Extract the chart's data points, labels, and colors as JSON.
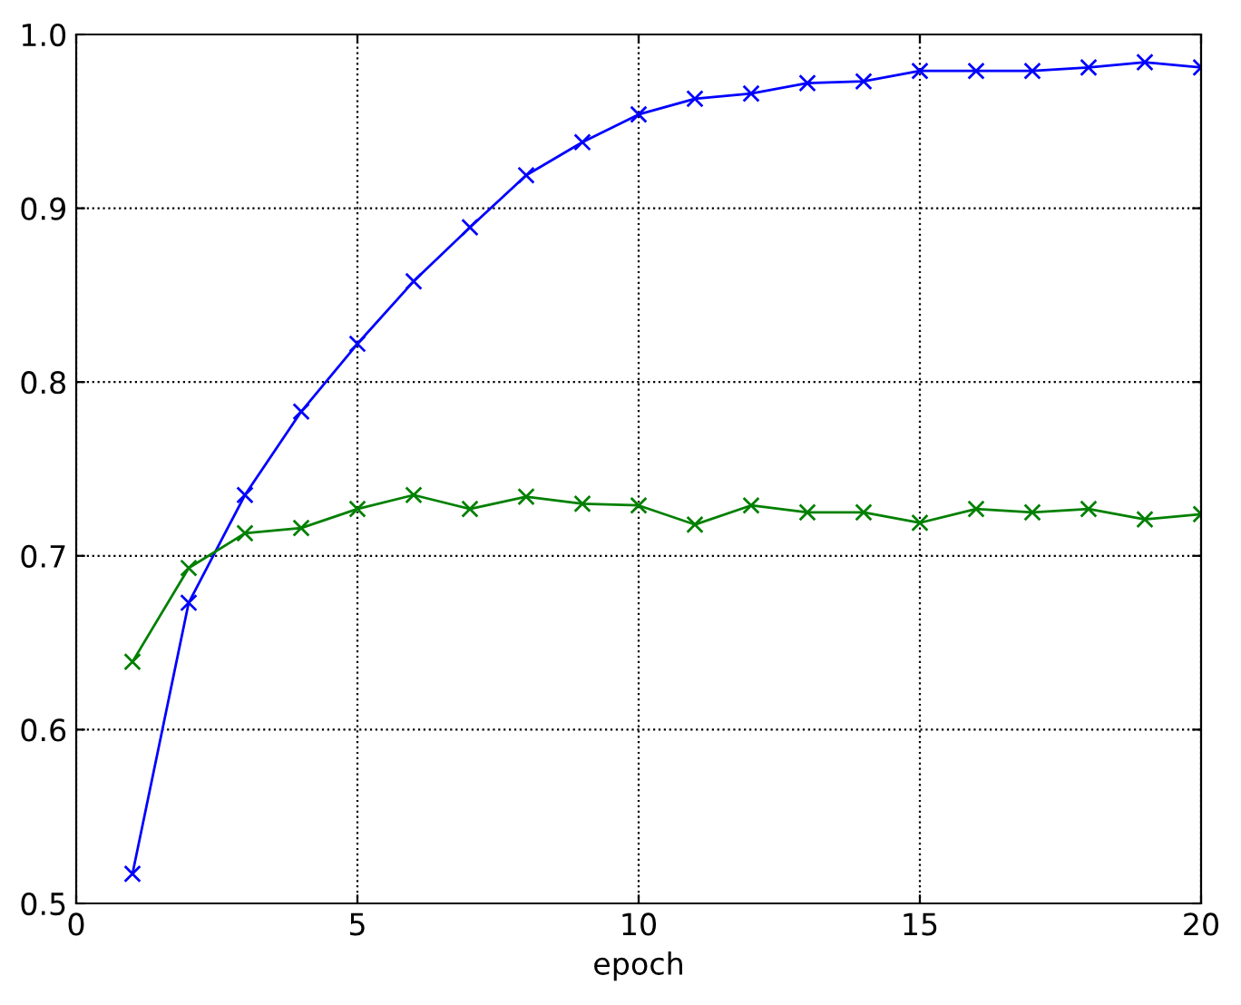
{
  "chart_data": {
    "type": "line",
    "xlabel": "epoch",
    "x": [
      1,
      2,
      3,
      4,
      5,
      6,
      7,
      8,
      9,
      10,
      11,
      12,
      13,
      14,
      15,
      16,
      17,
      18,
      19,
      20
    ],
    "series": [
      {
        "color": "#0000ff",
        "values": [
          0.517,
          0.673,
          0.735,
          0.783,
          0.822,
          0.858,
          0.889,
          0.919,
          0.938,
          0.954,
          0.963,
          0.966,
          0.972,
          0.973,
          0.979,
          0.979,
          0.979,
          0.981,
          0.984,
          0.981
        ]
      },
      {
        "color": "#008000",
        "values": [
          0.639,
          0.693,
          0.713,
          0.716,
          0.727,
          0.735,
          0.727,
          0.734,
          0.73,
          0.729,
          0.718,
          0.729,
          0.725,
          0.725,
          0.719,
          0.727,
          0.725,
          0.727,
          0.721,
          0.724
        ]
      }
    ],
    "xlim": [
      0,
      20
    ],
    "xticks": [
      0,
      5,
      10,
      15,
      20
    ],
    "ylim": [
      0.5,
      1.0
    ],
    "yticks": [
      0.5,
      0.6,
      0.7,
      0.8,
      0.9,
      {
        "value": 1,
        "label": "1.0"
      }
    ],
    "grid": true,
    "marker": "cross",
    "line_style": "solid"
  }
}
